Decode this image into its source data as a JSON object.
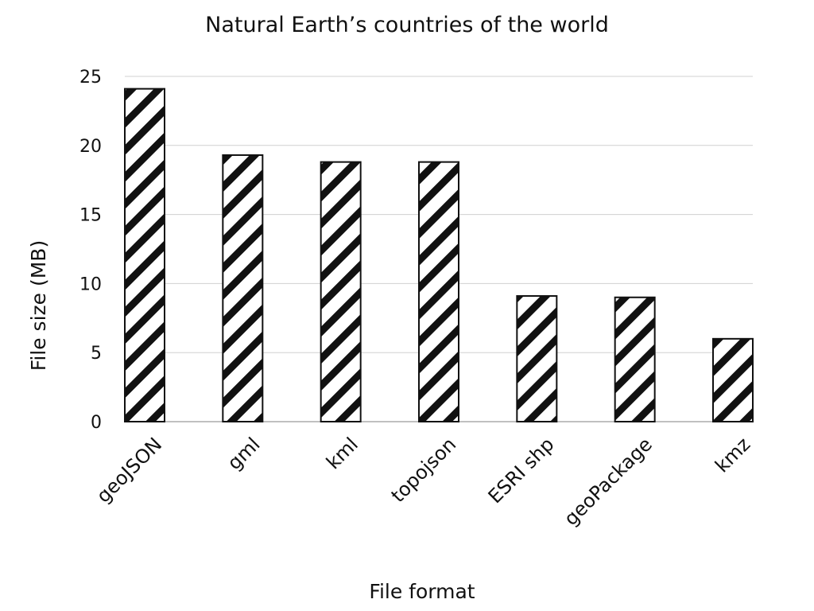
{
  "chart_data": {
    "type": "bar",
    "title": "Natural Earth’s countries of the world",
    "xlabel": "File format",
    "ylabel": "File size (MB)",
    "categories": [
      "geoJSON",
      "gml",
      "kml",
      "topojson",
      "ESRI shp",
      "geoPackage",
      "kmz"
    ],
    "values": [
      24.1,
      19.3,
      18.8,
      18.8,
      9.1,
      9.0,
      6.0
    ],
    "ylim": [
      0,
      25
    ],
    "yticks": [
      0,
      5,
      10,
      15,
      20,
      25
    ],
    "grid": true,
    "bar_fill": "hatched",
    "colors": {
      "bar_stroke": "#111111",
      "hatch": "#111111",
      "grid": "#d0d0d0"
    }
  }
}
